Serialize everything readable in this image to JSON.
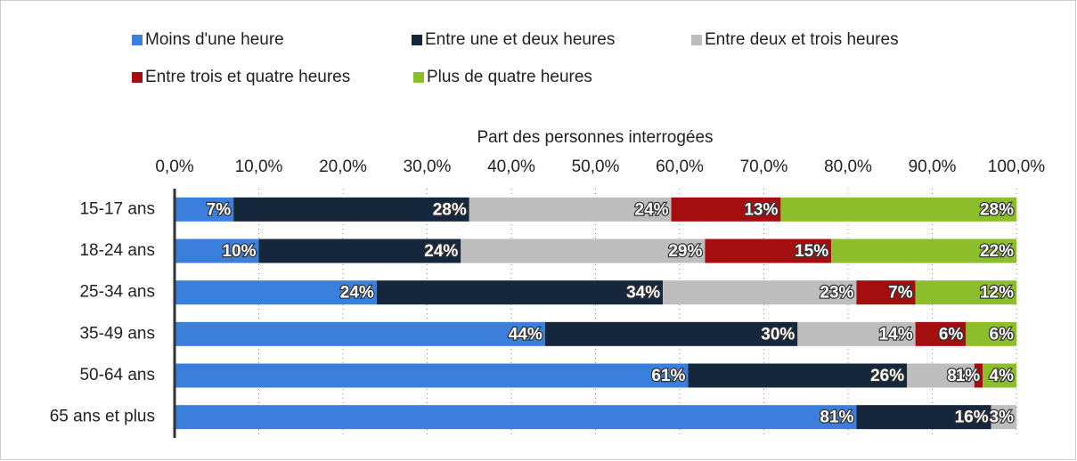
{
  "chart_data": {
    "type": "stacked_barh",
    "xlabel": "Part des personnes interrogées",
    "categories": [
      "15-17 ans",
      "18-24 ans",
      "25-34 ans",
      "35-49 ans",
      "50-64 ans",
      "65 ans et plus"
    ],
    "xlim": [
      0,
      100
    ],
    "xticks": [
      {
        "value": 0,
        "label": "0,0%"
      },
      {
        "value": 10,
        "label": "10,0%"
      },
      {
        "value": 20,
        "label": "20,0%"
      },
      {
        "value": 30,
        "label": "30,0%"
      },
      {
        "value": 40,
        "label": "40,0%"
      },
      {
        "value": 50,
        "label": "50,0%"
      },
      {
        "value": 60,
        "label": "60,0%"
      },
      {
        "value": 70,
        "label": "70,0%"
      },
      {
        "value": 80,
        "label": "80,0%"
      },
      {
        "value": 90,
        "label": "90,0%"
      },
      {
        "value": 100,
        "label": "100,0%"
      }
    ],
    "grid": true,
    "legend": "top",
    "series": [
      {
        "name": "Moins d'une heure",
        "color": "#3a7fdc",
        "values": [
          7,
          10,
          24,
          44,
          61,
          81
        ],
        "value_labels": [
          "7%",
          "10%",
          "24%",
          "44%",
          "61%",
          "81%"
        ]
      },
      {
        "name": "Entre une et deux heures",
        "color": "#14273c",
        "values": [
          28,
          24,
          34,
          30,
          26,
          16
        ],
        "value_labels": [
          "28%",
          "24%",
          "34%",
          "30%",
          "26%",
          "16%"
        ]
      },
      {
        "name": "Entre deux et trois heures",
        "color": "#bdbdbd",
        "values": [
          24,
          29,
          23,
          14,
          8,
          3
        ],
        "value_labels": [
          "24%",
          "29%",
          "23%",
          "14%",
          "8%",
          "3%"
        ]
      },
      {
        "name": "Entre trois et quatre heures",
        "color": "#a50e0e",
        "values": [
          13,
          15,
          7,
          6,
          1,
          0
        ],
        "value_labels": [
          "13%",
          "15%",
          "7%",
          "6%",
          "1%",
          null
        ]
      },
      {
        "name": "Plus de quatre heures",
        "color": "#8cbd2a",
        "values": [
          28,
          22,
          12,
          6,
          4,
          0
        ],
        "value_labels": [
          "28%",
          "22%",
          "12%",
          "6%",
          "4%",
          null
        ]
      }
    ]
  }
}
